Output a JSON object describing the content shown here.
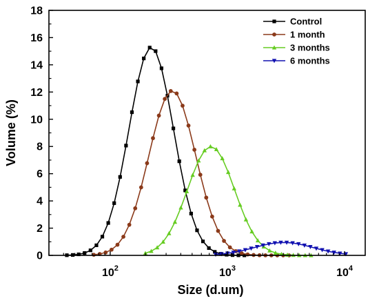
{
  "chart_data": {
    "type": "line",
    "title": "",
    "xlabel": "Size (d.um)",
    "ylabel": "Volume (%)",
    "xscale": "log",
    "xlim": [
      30,
      15000
    ],
    "ylim": [
      0,
      18
    ],
    "grid": false,
    "legend_position": "top-right",
    "x_ticks": [
      {
        "value": 100,
        "base": "10",
        "exp": "2"
      },
      {
        "value": 1000,
        "base": "10",
        "exp": "3"
      },
      {
        "value": 10000,
        "base": "10",
        "exp": "4"
      }
    ],
    "y_ticks": [
      "0",
      "2",
      "4",
      "6",
      "8",
      "10",
      "12",
      "14",
      "16",
      "18"
    ],
    "series": [
      {
        "name": "Control",
        "color": "#000000",
        "marker": "square",
        "mu_log10": 2.35,
        "sigma_log10": 0.19,
        "peak": 15.3,
        "log10_range": [
          1.63,
          3.15
        ]
      },
      {
        "name": "1 month",
        "color": "#8B3A1A",
        "marker": "circle",
        "mu_log10": 2.53,
        "sigma_log10": 0.2,
        "peak": 12.1,
        "log10_range": [
          1.86,
          3.53
        ]
      },
      {
        "name": "3 months",
        "color": "#66CC22",
        "marker": "triangle-up",
        "mu_log10": 2.86,
        "sigma_log10": 0.2,
        "peak": 8.0,
        "log10_range": [
          2.3,
          3.75
        ]
      },
      {
        "name": "6 months",
        "color": "#1010B0",
        "marker": "triangle-down",
        "mu_log10": 3.48,
        "sigma_log10": 0.25,
        "peak": 0.95,
        "log10_range": [
          2.9,
          4.02
        ]
      }
    ]
  }
}
